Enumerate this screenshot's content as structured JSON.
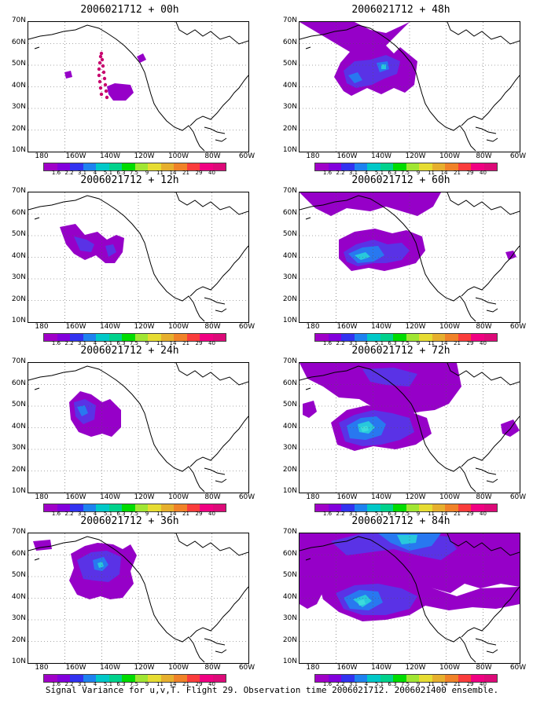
{
  "panels": [
    {
      "title": "2006021712 + 00h",
      "col": 0,
      "row": 0,
      "level": 0
    },
    {
      "title": "2006021712 + 48h",
      "col": 1,
      "row": 0,
      "level": 4
    },
    {
      "title": "2006021712 + 12h",
      "col": 0,
      "row": 1,
      "level": 1
    },
    {
      "title": "2006021712 + 60h",
      "col": 1,
      "row": 1,
      "level": 5
    },
    {
      "title": "2006021712 + 24h",
      "col": 0,
      "row": 2,
      "level": 2
    },
    {
      "title": "2006021712 + 72h",
      "col": 1,
      "row": 2,
      "level": 6
    },
    {
      "title": "2006021712 + 36h",
      "col": 0,
      "row": 3,
      "level": 3
    },
    {
      "title": "2006021712 + 84h",
      "col": 1,
      "row": 3,
      "level": 7
    }
  ],
  "axes": {
    "y_labels": [
      "70N",
      "60N",
      "50N",
      "40N",
      "30N",
      "20N",
      "10N"
    ],
    "x_labels": [
      "180",
      "160W",
      "140W",
      "120W",
      "100W",
      "80W",
      "60W"
    ]
  },
  "colorbar": {
    "labels": [
      "1.6",
      "2.2",
      "3.1",
      "4",
      "5.1",
      "6.3",
      "7.5",
      "9",
      "11",
      "14",
      "21",
      "29",
      "40"
    ],
    "colors": [
      "#a000c8",
      "#8200dc",
      "#3232f0",
      "#1e82f0",
      "#00c8c8",
      "#00d28c",
      "#00dc00",
      "#a0e632",
      "#e6dc32",
      "#e6af2d",
      "#f08228",
      "#fa3c3c",
      "#f00082",
      "#dc0a78"
    ]
  },
  "caption": "Signal Variance for u,v,T. Flight 29. Observation time 2006021712. 2006021400 ensemble."
}
